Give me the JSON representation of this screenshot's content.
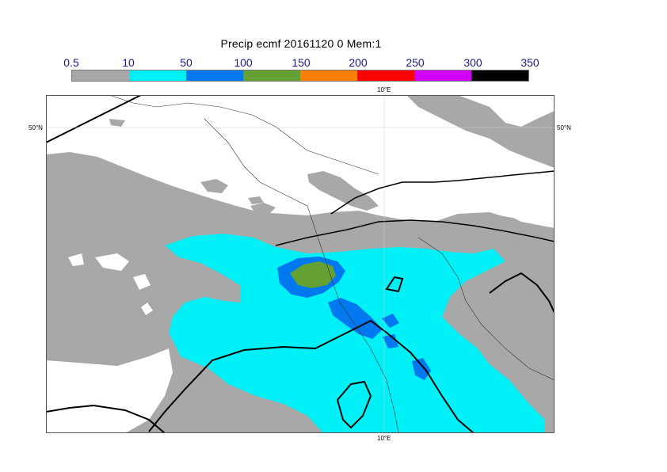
{
  "title": "Precip ecmf 20161120 0 Mem:1",
  "legend": {
    "ticks": [
      "0.5",
      "10",
      "50",
      "100",
      "150",
      "200",
      "250",
      "300",
      "350"
    ],
    "colors": [
      "#a8a8a8",
      "#00f0f8",
      "#0078f0",
      "#64a032",
      "#ff8000",
      "#ff0000",
      "#d200ff",
      "#000000"
    ]
  },
  "map": {
    "labels": {
      "lon_top": "10°E",
      "lon_bottom": "10°E",
      "lat_left": "50°N",
      "lat_right": "50°N"
    }
  }
}
